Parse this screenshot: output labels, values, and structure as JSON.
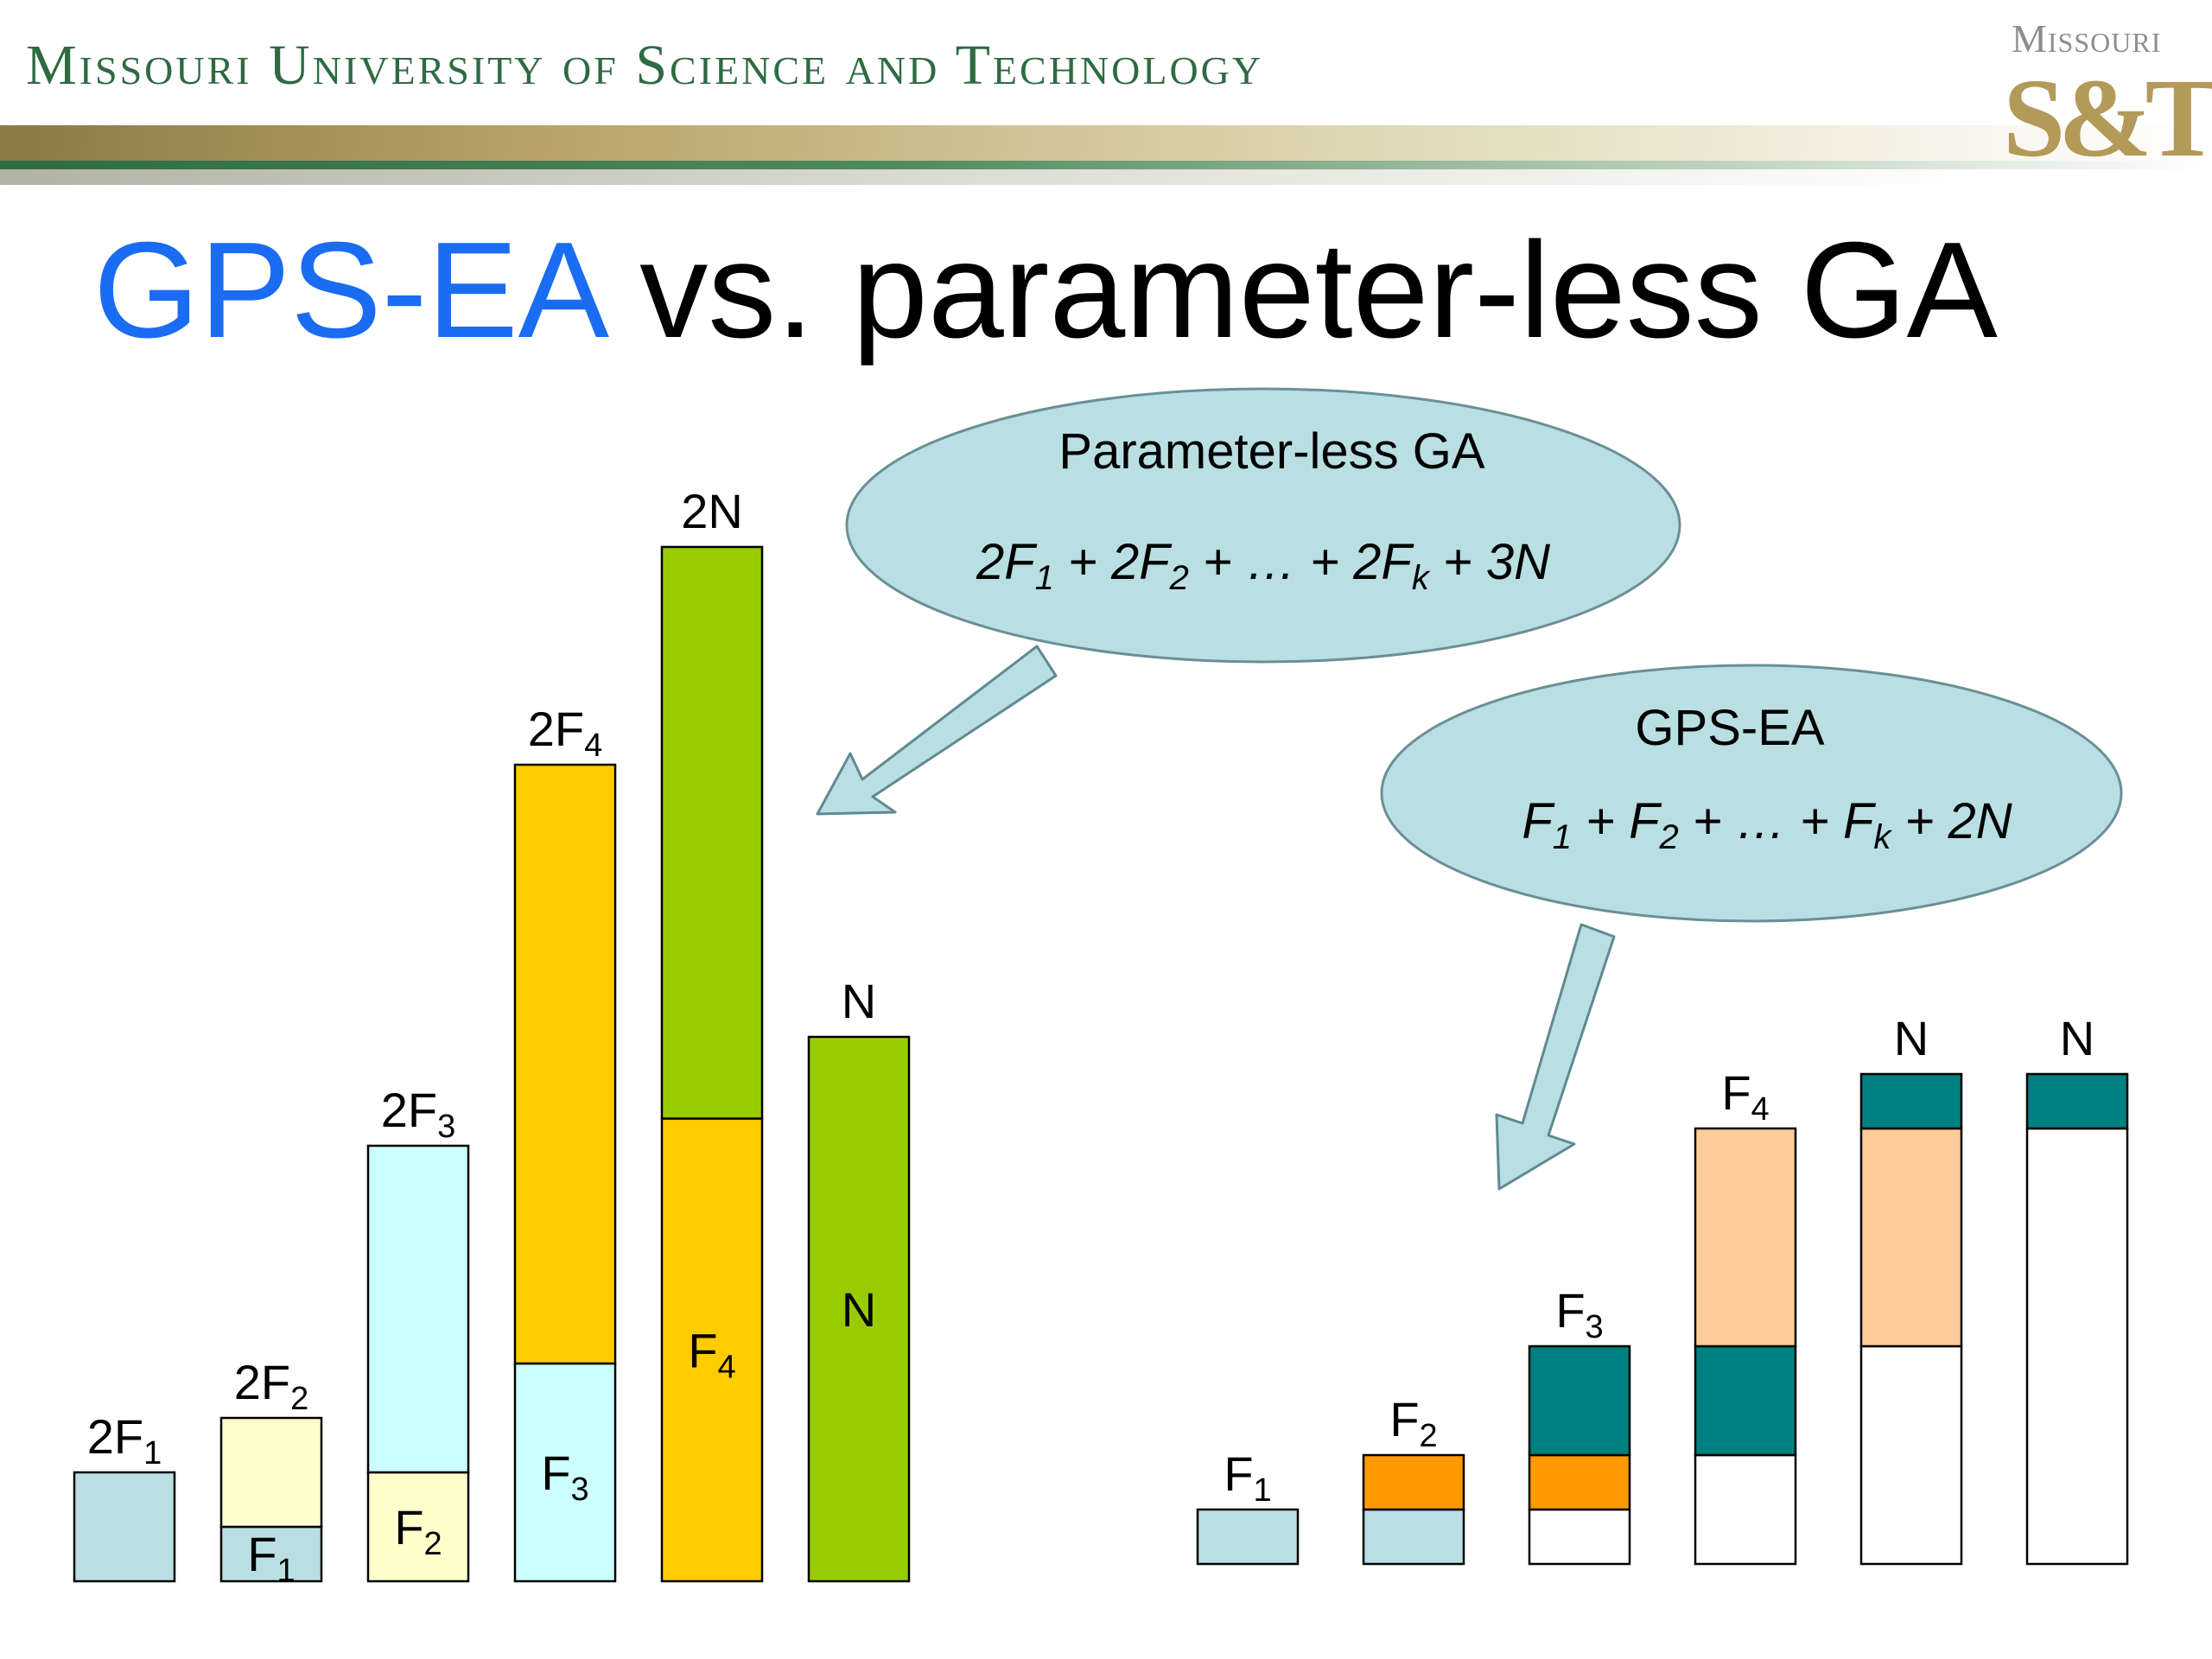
{
  "header": {
    "institution": "Missouri University of Science and Technology",
    "logo_word": "Missouri",
    "logo_mark": "S&T"
  },
  "title": {
    "accent": "GPS-EA",
    "rest": " vs. parameter-less GA"
  },
  "colors": {
    "title_accent": "#1a6cf2",
    "bubble_fill": "#b9dfe3",
    "f1": "#b9dfe3",
    "f2": "#ffffcc",
    "f3": "#ccffff",
    "f4": "#ffcc00",
    "n": "#99cc00",
    "orange": "#ff9900",
    "teal": "#008080",
    "peach": "#ffcc99",
    "empty": "#ffffff"
  },
  "bubbles": {
    "parameterless": {
      "title": "Parameter-less GA",
      "formula": [
        [
          "2F",
          ""
        ],
        [
          "1",
          "sub"
        ],
        [
          " + 2F",
          ""
        ],
        [
          "2",
          "sub"
        ],
        [
          " + … + 2F",
          ""
        ],
        [
          "k",
          "sub"
        ],
        [
          " + 3N",
          ""
        ]
      ]
    },
    "gpsea": {
      "title": "GPS-EA",
      "formula": [
        [
          "F",
          ""
        ],
        [
          "1",
          "sub"
        ],
        [
          " + F",
          ""
        ],
        [
          "2",
          "sub"
        ],
        [
          " + … + F",
          ""
        ],
        [
          "k",
          "sub"
        ],
        [
          " + 2N",
          ""
        ]
      ]
    }
  },
  "left_bars": [
    {
      "top_label": [
        [
          "2F",
          ""
        ],
        [
          "1",
          "sub"
        ]
      ],
      "height": 2,
      "segments": [
        {
          "fill": "f1",
          "value": 2,
          "label": []
        }
      ]
    },
    {
      "top_label": [
        [
          "2F",
          ""
        ],
        [
          "2",
          "sub"
        ]
      ],
      "height": 3,
      "segments": [
        {
          "fill": "f1",
          "value": 1,
          "label": [
            [
              "F",
              ""
            ],
            [
              "1",
              "sub"
            ]
          ]
        },
        {
          "fill": "f2",
          "value": 2,
          "label": []
        }
      ]
    },
    {
      "top_label": [
        [
          "2F",
          ""
        ],
        [
          "3",
          "sub"
        ]
      ],
      "height": 8,
      "segments": [
        {
          "fill": "f2",
          "value": 2,
          "label": [
            [
              "F",
              ""
            ],
            [
              "2",
              "sub"
            ]
          ]
        },
        {
          "fill": "f3",
          "value": 6,
          "label": []
        }
      ]
    },
    {
      "top_label": [
        [
          "2F",
          ""
        ],
        [
          "4",
          "sub"
        ]
      ],
      "height": 15,
      "segments": [
        {
          "fill": "f3",
          "value": 4,
          "label": [
            [
              "F",
              ""
            ],
            [
              "3",
              "sub"
            ]
          ]
        },
        {
          "fill": "f4",
          "value": 11,
          "label": []
        }
      ]
    },
    {
      "top_label": [
        [
          "2N",
          ""
        ]
      ],
      "height": 19,
      "segments": [
        {
          "fill": "f4",
          "value": 8.5,
          "label": [
            [
              "F",
              ""
            ],
            [
              "4",
              "sub"
            ]
          ]
        },
        {
          "fill": "n",
          "value": 10.5,
          "label": []
        }
      ]
    },
    {
      "top_label": [
        [
          "N",
          ""
        ]
      ],
      "height": 10,
      "segments": [
        {
          "fill": "n",
          "value": 10,
          "label": [
            [
              "N",
              ""
            ]
          ]
        }
      ]
    }
  ],
  "right_bars": [
    {
      "top_label": [
        [
          "F",
          ""
        ],
        [
          "1",
          "sub"
        ]
      ],
      "height": 1,
      "segments": [
        {
          "fill": "f1",
          "value": 1
        }
      ]
    },
    {
      "top_label": [
        [
          "F",
          ""
        ],
        [
          "2",
          "sub"
        ]
      ],
      "height": 2,
      "segments": [
        {
          "fill": "f1",
          "value": 1
        },
        {
          "fill": "orange",
          "value": 1
        }
      ]
    },
    {
      "top_label": [
        [
          "F",
          ""
        ],
        [
          "3",
          "sub"
        ]
      ],
      "height": 4,
      "segments": [
        {
          "fill": "empty",
          "value": 1
        },
        {
          "fill": "orange",
          "value": 1
        },
        {
          "fill": "teal",
          "value": 2
        }
      ]
    },
    {
      "top_label": [
        [
          "F",
          ""
        ],
        [
          "4",
          "sub"
        ]
      ],
      "height": 8,
      "segments": [
        {
          "fill": "empty",
          "value": 2
        },
        {
          "fill": "teal",
          "value": 2
        },
        {
          "fill": "peach",
          "value": 4
        }
      ]
    },
    {
      "top_label": [
        [
          "N",
          ""
        ]
      ],
      "height": 9,
      "segments": [
        {
          "fill": "empty",
          "value": 4
        },
        {
          "fill": "peach",
          "value": 4
        },
        {
          "fill": "teal",
          "value": 1
        }
      ]
    },
    {
      "top_label": [
        [
          "N",
          ""
        ]
      ],
      "height": 9,
      "segments": [
        {
          "fill": "empty",
          "value": 8
        },
        {
          "fill": "teal",
          "value": 1
        }
      ]
    }
  ]
}
